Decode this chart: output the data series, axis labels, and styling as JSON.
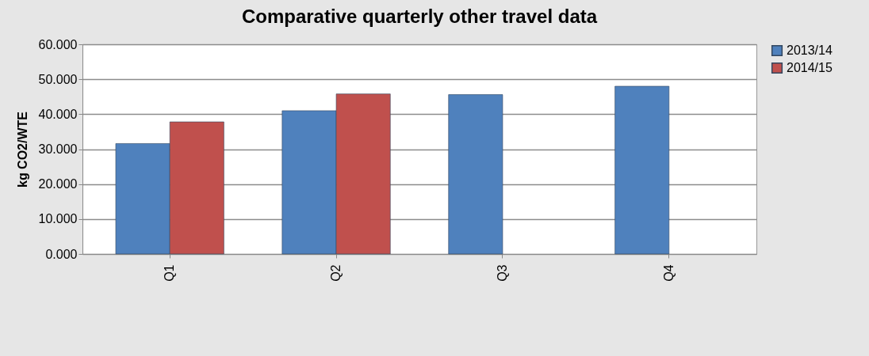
{
  "chart_data": {
    "type": "bar",
    "title": "Comparative quarterly other travel data",
    "ylabel": "kg CO2/WTE",
    "categories": [
      "Q1",
      "Q2",
      "Q3",
      "Q4"
    ],
    "series": [
      {
        "name": "2013/14",
        "color": "#4f81bd",
        "values": [
          31.6,
          41.0,
          45.6,
          48.0
        ]
      },
      {
        "name": "2014/15",
        "color": "#c0504d",
        "values": [
          37.8,
          45.8,
          null,
          null
        ]
      }
    ],
    "ylim": [
      0,
      60
    ],
    "yticks": [
      {
        "value": 0,
        "label": "0.000"
      },
      {
        "value": 10,
        "label": "10.000"
      },
      {
        "value": 20,
        "label": "20.000"
      },
      {
        "value": 30,
        "label": "30.000"
      },
      {
        "value": 40,
        "label": "40.000"
      },
      {
        "value": 50,
        "label": "50.000"
      },
      {
        "value": 60,
        "label": "60.000"
      }
    ],
    "grid": "y",
    "legend": "right"
  }
}
